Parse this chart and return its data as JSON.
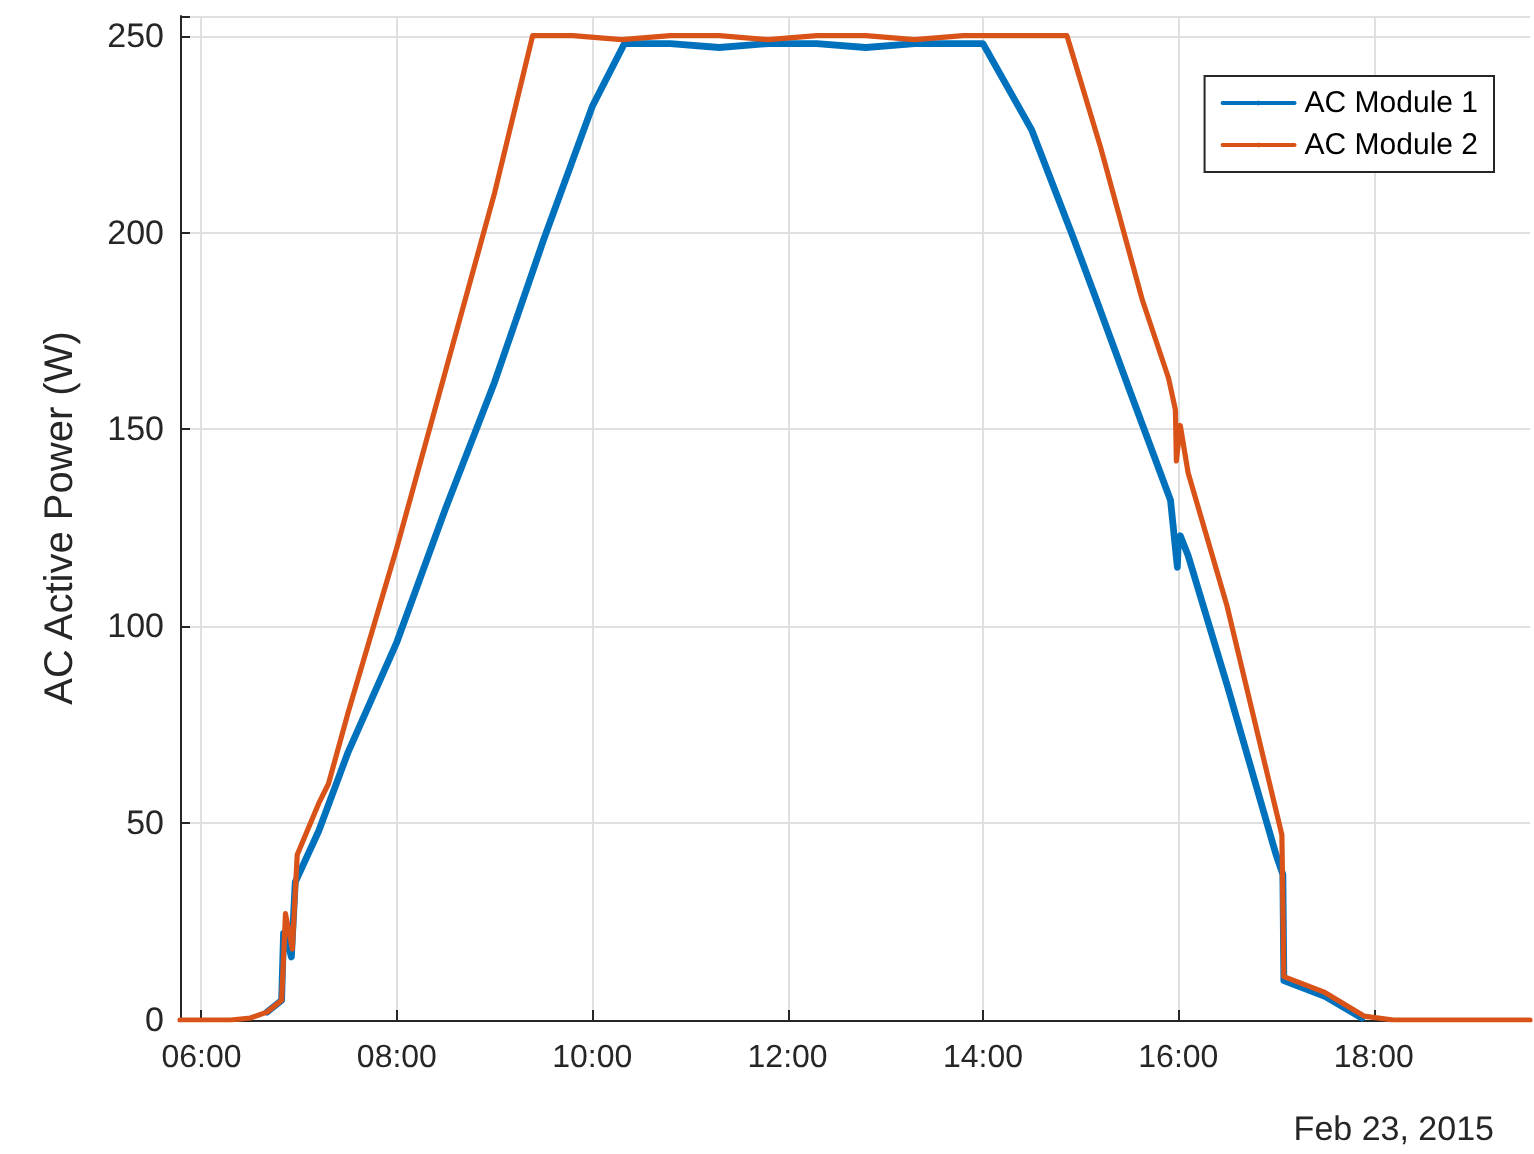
{
  "chart_data": {
    "type": "line",
    "ylabel": "AC Active Power (W)",
    "annotations": [
      "Feb 23, 2015"
    ],
    "xlim": [
      5.78,
      19.6
    ],
    "ylim": [
      0,
      255
    ],
    "xticks": [
      {
        "value": 6,
        "label": "06:00"
      },
      {
        "value": 8,
        "label": "08:00"
      },
      {
        "value": 10,
        "label": "10:00"
      },
      {
        "value": 12,
        "label": "12:00"
      },
      {
        "value": 14,
        "label": "14:00"
      },
      {
        "value": 16,
        "label": "16:00"
      },
      {
        "value": 18,
        "label": "18:00"
      }
    ],
    "yticks": [
      0,
      50,
      100,
      150,
      200,
      250
    ],
    "grid": true,
    "legend": "top right",
    "marker": "none",
    "line_style": "solid",
    "series": [
      {
        "name": "AC Module 1",
        "color": "#0072bd",
        "x": [
          6.67,
          6.82,
          6.84,
          6.88,
          6.92,
          6.96,
          7.2,
          7.5,
          8.0,
          8.5,
          9.0,
          9.5,
          10.0,
          10.33,
          10.8,
          11.3,
          11.8,
          12.3,
          12.8,
          13.3,
          13.8,
          14.0,
          14.5,
          14.92,
          15.16,
          15.5,
          15.92,
          15.99,
          16.0,
          16.02,
          16.1,
          16.5,
          17.0,
          17.07,
          17.08,
          17.5,
          17.88
        ],
        "values": [
          2,
          5,
          22,
          20,
          16,
          35,
          48,
          68,
          96,
          130,
          162,
          198,
          232,
          248,
          248,
          247,
          248,
          248,
          247,
          248,
          248,
          248,
          226,
          199,
          183,
          160,
          132,
          115,
          122,
          123,
          118,
          85,
          42,
          37,
          10,
          6,
          0.5
        ]
      },
      {
        "name": "AC Module 2",
        "color": "#d95319",
        "x": [
          5.78,
          6.3,
          6.5,
          6.67,
          6.82,
          6.86,
          6.93,
          6.98,
          7.2,
          7.3,
          7.5,
          8.0,
          8.5,
          9.0,
          9.39,
          9.8,
          10.3,
          10.8,
          11.3,
          11.8,
          12.3,
          12.8,
          13.3,
          13.8,
          14.3,
          14.86,
          15.2,
          15.63,
          15.9,
          15.97,
          15.98,
          16.02,
          16.1,
          16.5,
          17.06,
          17.08,
          17.5,
          17.9,
          18.2,
          19.6
        ],
        "values": [
          0,
          0,
          0.5,
          2,
          5,
          27,
          18,
          42,
          55,
          60,
          78,
          120,
          165,
          210,
          250,
          250,
          249,
          250,
          250,
          249,
          250,
          250,
          249,
          250,
          250,
          250,
          222,
          183,
          163,
          155,
          142,
          151,
          139,
          105,
          47,
          11,
          7,
          1,
          0,
          0
        ]
      }
    ]
  }
}
